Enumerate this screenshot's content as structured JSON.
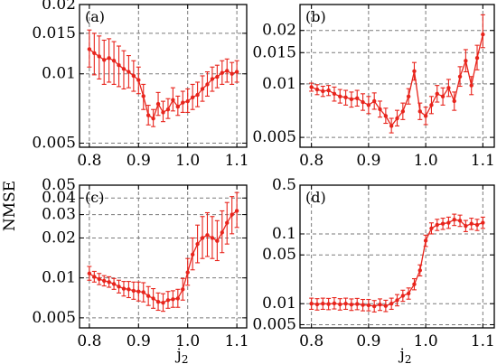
{
  "figure": {
    "ylabel": "NMSE",
    "xlabel": "j",
    "xlabel_sub": "2",
    "colors": {
      "series": "#e8241c",
      "grid": "#7a7a7a",
      "frame": "#000000"
    }
  },
  "chart_data": [
    {
      "type": "line",
      "panel_label": "(a)",
      "yscale": "log",
      "xlim": [
        0.78,
        1.12
      ],
      "ylim": [
        0.0048,
        0.02
      ],
      "xticks": [
        0.8,
        0.9,
        1.0,
        1.1
      ],
      "xtick_labels": [
        "0.8",
        "0.9",
        "1.0",
        "1.1"
      ],
      "yticks": [
        0.005,
        0.01,
        0.015,
        0.02
      ],
      "ytick_labels": [
        "0.005",
        "0.01",
        "0.015",
        "0.02"
      ],
      "grid": true,
      "x": [
        0.8,
        0.81,
        0.82,
        0.83,
        0.84,
        0.85,
        0.86,
        0.87,
        0.88,
        0.89,
        0.9,
        0.91,
        0.92,
        0.93,
        0.94,
        0.95,
        0.96,
        0.97,
        0.98,
        0.99,
        1.0,
        1.01,
        1.02,
        1.03,
        1.04,
        1.05,
        1.06,
        1.07,
        1.08,
        1.09,
        1.1
      ],
      "y": [
        0.0128,
        0.0123,
        0.0119,
        0.0115,
        0.0117,
        0.0114,
        0.0109,
        0.0105,
        0.0102,
        0.0098,
        0.0094,
        0.008,
        0.0066,
        0.0064,
        0.0074,
        0.0068,
        0.007,
        0.0077,
        0.0072,
        0.0075,
        0.0076,
        0.0079,
        0.0081,
        0.0086,
        0.009,
        0.0095,
        0.0097,
        0.0101,
        0.0103,
        0.01,
        0.0102
      ],
      "yerr_low": [
        0.0107,
        0.0099,
        0.0095,
        0.009,
        0.0092,
        0.009,
        0.0088,
        0.0086,
        0.0087,
        0.0084,
        0.0082,
        0.007,
        0.006,
        0.0059,
        0.0066,
        0.0062,
        0.0064,
        0.0069,
        0.0066,
        0.0068,
        0.0068,
        0.007,
        0.0072,
        0.0076,
        0.008,
        0.0084,
        0.0087,
        0.009,
        0.0092,
        0.009,
        0.0092
      ],
      "yerr_high": [
        0.0155,
        0.015,
        0.0146,
        0.014,
        0.0142,
        0.0138,
        0.0132,
        0.0126,
        0.012,
        0.0114,
        0.0107,
        0.009,
        0.0073,
        0.007,
        0.0083,
        0.0076,
        0.0078,
        0.0087,
        0.008,
        0.0084,
        0.0086,
        0.009,
        0.0092,
        0.0098,
        0.0102,
        0.0107,
        0.0109,
        0.0114,
        0.0116,
        0.0112,
        0.0114
      ]
    },
    {
      "type": "line",
      "panel_label": "(b)",
      "yscale": "log",
      "xlim": [
        0.78,
        1.12
      ],
      "ylim": [
        0.0044,
        0.028
      ],
      "xticks": [
        0.8,
        0.9,
        1.0,
        1.1
      ],
      "xtick_labels": [
        "0.8",
        "0.9",
        "1.0",
        "1.1"
      ],
      "yticks": [
        0.005,
        0.01,
        0.015,
        0.02
      ],
      "ytick_labels": [
        "0.005",
        "0.01",
        "0.015",
        "0.02"
      ],
      "grid": true,
      "x": [
        0.8,
        0.81,
        0.82,
        0.83,
        0.84,
        0.85,
        0.86,
        0.87,
        0.88,
        0.89,
        0.9,
        0.91,
        0.92,
        0.93,
        0.94,
        0.95,
        0.96,
        0.97,
        0.98,
        0.99,
        1.0,
        1.01,
        1.02,
        1.03,
        1.04,
        1.05,
        1.06,
        1.07,
        1.08,
        1.09,
        1.1
      ],
      "y": [
        0.0096,
        0.0093,
        0.0091,
        0.0092,
        0.0088,
        0.0085,
        0.0084,
        0.0082,
        0.0083,
        0.0079,
        0.0076,
        0.008,
        0.0072,
        0.0066,
        0.0058,
        0.0064,
        0.007,
        0.0085,
        0.0118,
        0.007,
        0.0066,
        0.0076,
        0.0088,
        0.0085,
        0.0095,
        0.008,
        0.011,
        0.0135,
        0.0098,
        0.014,
        0.019
      ],
      "yerr_low": [
        0.0091,
        0.0087,
        0.0085,
        0.0086,
        0.008,
        0.0078,
        0.0076,
        0.0074,
        0.0075,
        0.0071,
        0.0068,
        0.0072,
        0.0065,
        0.006,
        0.0053,
        0.0058,
        0.0063,
        0.0077,
        0.0105,
        0.0063,
        0.0059,
        0.0068,
        0.0079,
        0.0076,
        0.0085,
        0.0071,
        0.0097,
        0.0117,
        0.0087,
        0.012,
        0.016
      ],
      "yerr_high": [
        0.0101,
        0.0099,
        0.0097,
        0.0098,
        0.0096,
        0.0093,
        0.0092,
        0.009,
        0.0092,
        0.0088,
        0.0085,
        0.0089,
        0.008,
        0.0073,
        0.0064,
        0.0071,
        0.0078,
        0.0094,
        0.0132,
        0.0078,
        0.0074,
        0.0085,
        0.0098,
        0.0095,
        0.0106,
        0.009,
        0.0125,
        0.0156,
        0.011,
        0.0165,
        0.0245
      ]
    },
    {
      "type": "line",
      "panel_label": "(c)",
      "yscale": "log",
      "xlim": [
        0.78,
        1.12
      ],
      "ylim": [
        0.0042,
        0.05
      ],
      "xticks": [
        0.8,
        0.9,
        1.0,
        1.1
      ],
      "xtick_labels": [
        "0.8",
        "0.9",
        "1.0",
        "1.1"
      ],
      "yticks": [
        0.005,
        0.01,
        0.02,
        0.03,
        0.04,
        0.05
      ],
      "ytick_labels": [
        "0.005",
        "0.01",
        "0.02",
        "0.03",
        "0.04",
        "0.05"
      ],
      "grid": true,
      "x": [
        0.8,
        0.81,
        0.82,
        0.83,
        0.84,
        0.85,
        0.86,
        0.87,
        0.88,
        0.89,
        0.9,
        0.91,
        0.92,
        0.93,
        0.94,
        0.95,
        0.96,
        0.97,
        0.98,
        0.99,
        1.0,
        1.01,
        1.02,
        1.03,
        1.04,
        1.05,
        1.06,
        1.07,
        1.08,
        1.09,
        1.1
      ],
      "y": [
        0.0108,
        0.0102,
        0.0098,
        0.0095,
        0.0093,
        0.009,
        0.0086,
        0.0083,
        0.0082,
        0.008,
        0.0079,
        0.0078,
        0.0073,
        0.007,
        0.0066,
        0.0065,
        0.0068,
        0.0069,
        0.007,
        0.0082,
        0.011,
        0.015,
        0.018,
        0.02,
        0.021,
        0.02,
        0.019,
        0.022,
        0.026,
        0.03,
        0.032
      ],
      "yerr_low": [
        0.0096,
        0.0093,
        0.0089,
        0.0087,
        0.0085,
        0.0082,
        0.0077,
        0.0073,
        0.0071,
        0.0069,
        0.0067,
        0.0066,
        0.0062,
        0.0059,
        0.0057,
        0.0056,
        0.0059,
        0.006,
        0.006,
        0.0068,
        0.0088,
        0.0115,
        0.013,
        0.014,
        0.0145,
        0.014,
        0.0135,
        0.0155,
        0.018,
        0.0215,
        0.024
      ],
      "yerr_high": [
        0.0122,
        0.0112,
        0.0108,
        0.0104,
        0.0102,
        0.0099,
        0.0096,
        0.0094,
        0.0094,
        0.0093,
        0.0093,
        0.0092,
        0.0086,
        0.0083,
        0.0077,
        0.0076,
        0.0079,
        0.008,
        0.0082,
        0.0099,
        0.014,
        0.02,
        0.025,
        0.029,
        0.031,
        0.029,
        0.027,
        0.032,
        0.037,
        0.041,
        0.044
      ]
    },
    {
      "type": "line",
      "panel_label": "(d)",
      "yscale": "log",
      "xlim": [
        0.78,
        1.12
      ],
      "ylim": [
        0.0045,
        0.5
      ],
      "xticks": [
        0.8,
        0.9,
        1.0,
        1.1
      ],
      "xtick_labels": [
        "0.8",
        "0.9",
        "1.0",
        "1.1"
      ],
      "yticks": [
        0.005,
        0.01,
        0.05,
        0.1,
        0.5
      ],
      "ytick_labels": [
        "0.005",
        "0.01",
        "0.05",
        "0.1",
        "0.5"
      ],
      "grid": true,
      "x": [
        0.8,
        0.81,
        0.82,
        0.83,
        0.84,
        0.85,
        0.86,
        0.87,
        0.88,
        0.89,
        0.9,
        0.91,
        0.92,
        0.93,
        0.94,
        0.95,
        0.96,
        0.97,
        0.98,
        0.99,
        1.0,
        1.01,
        1.02,
        1.03,
        1.04,
        1.05,
        1.06,
        1.07,
        1.08,
        1.09,
        1.1
      ],
      "y": [
        0.01,
        0.0098,
        0.01,
        0.0099,
        0.0101,
        0.0098,
        0.01,
        0.0097,
        0.0099,
        0.0096,
        0.0095,
        0.0092,
        0.0097,
        0.0093,
        0.01,
        0.0112,
        0.013,
        0.014,
        0.019,
        0.03,
        0.08,
        0.12,
        0.135,
        0.14,
        0.145,
        0.16,
        0.155,
        0.13,
        0.14,
        0.135,
        0.145
      ],
      "yerr_low": [
        0.0083,
        0.0081,
        0.0083,
        0.0082,
        0.0084,
        0.0081,
        0.0083,
        0.008,
        0.0082,
        0.0079,
        0.0079,
        0.0076,
        0.008,
        0.0077,
        0.0083,
        0.0093,
        0.0108,
        0.0116,
        0.0158,
        0.025,
        0.066,
        0.1,
        0.112,
        0.116,
        0.12,
        0.132,
        0.128,
        0.108,
        0.116,
        0.112,
        0.12
      ],
      "yerr_high": [
        0.012,
        0.0118,
        0.012,
        0.0119,
        0.0122,
        0.0118,
        0.012,
        0.0117,
        0.0119,
        0.0115,
        0.0115,
        0.0111,
        0.0117,
        0.0112,
        0.012,
        0.0135,
        0.0156,
        0.0168,
        0.0228,
        0.036,
        0.096,
        0.144,
        0.162,
        0.168,
        0.174,
        0.192,
        0.186,
        0.156,
        0.168,
        0.162,
        0.174
      ]
    }
  ]
}
